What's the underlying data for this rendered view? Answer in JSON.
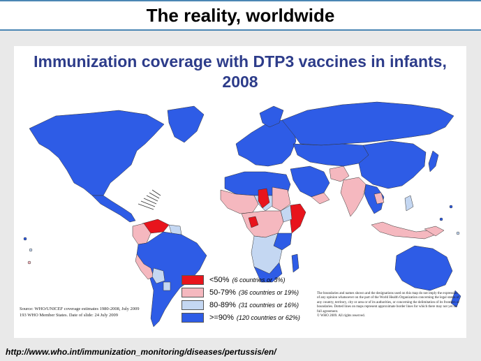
{
  "slide_title": "The reality, worldwide",
  "map": {
    "title_line1": "Immunization coverage with DTP3 vaccines in infants,",
    "title_line2": "2008",
    "colors": {
      "lt50": "#e8141c",
      "c50_79": "#f5b8bf",
      "c80_89": "#c4d7f2",
      "ge90": "#2e5ce6",
      "ocean": "#ffffff",
      "border": "#333333"
    },
    "legend": [
      {
        "label": "<50%",
        "sub": "(6 countries or 3%)",
        "color": "#e8141c"
      },
      {
        "label": "50-79%",
        "sub": "(36 countries or 19%)",
        "color": "#f5b8bf"
      },
      {
        "label": "80-89%",
        "sub": "(31 countries or 16%)",
        "color": "#c4d7f2"
      },
      {
        "label": ">=90%",
        "sub": "(120 countries or 62%)",
        "color": "#2e5ce6"
      }
    ],
    "source_line1": "Source: WHO/UNICEF coverage estimates 1980-2008, July 2009",
    "source_line2": "193 WHO Member States. Date of slide: 24 July 2009",
    "disclaimer": "The boundaries and names shown and the designations used on this map do not imply the expression of any opinion whatsoever on the part of the World Health Organization concerning the legal status of any country, territory, city or area or of its authorities, or concerning the delimitation of its frontiers or boundaries. Dotted lines on maps represent approximate border lines for which there may not yet be full agreement.",
    "copyright": "© WHO 2009. All rights reserved."
  },
  "footer_url": "http://www.who.int/immunization_monitoring/diseases/pertussis/en/"
}
